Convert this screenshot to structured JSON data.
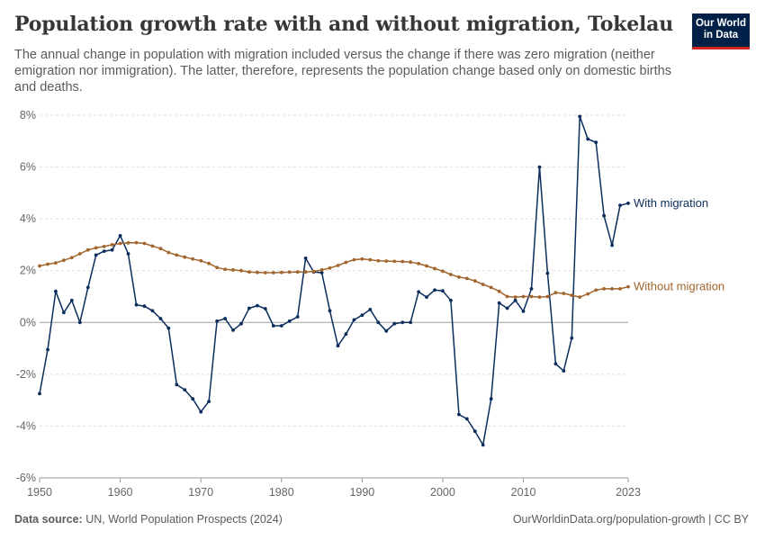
{
  "header": {
    "title": "Population growth rate with and without migration, Tokelau",
    "subtitle": "The annual change in population with migration included versus the change if there was zero migration (neither emigration nor immigration). The latter, therefore, represents the population change based only on domestic births and deaths."
  },
  "logo": {
    "line1": "Our World",
    "line2": "in Data",
    "bg": "#002147",
    "accent": "#ce261e"
  },
  "footer": {
    "source_label": "Data source:",
    "source_text": "UN, World Population Prospects (2024)",
    "credit": "OurWorldinData.org/population-growth | CC BY"
  },
  "chart_data": {
    "type": "line",
    "x": [
      1950,
      1951,
      1952,
      1953,
      1954,
      1955,
      1956,
      1957,
      1958,
      1959,
      1960,
      1961,
      1962,
      1963,
      1964,
      1965,
      1966,
      1967,
      1968,
      1969,
      1970,
      1971,
      1972,
      1973,
      1974,
      1975,
      1976,
      1977,
      1978,
      1979,
      1980,
      1981,
      1982,
      1983,
      1984,
      1985,
      1986,
      1987,
      1988,
      1989,
      1990,
      1991,
      1992,
      1993,
      1994,
      1995,
      1996,
      1997,
      1998,
      1999,
      2000,
      2001,
      2002,
      2003,
      2004,
      2005,
      2006,
      2007,
      2008,
      2009,
      2010,
      2011,
      2012,
      2013,
      2014,
      2015,
      2016,
      2017,
      2018,
      2019,
      2020,
      2021,
      2022,
      2023
    ],
    "series": [
      {
        "name": "With migration",
        "color": "#0b2d5c",
        "values": [
          -2.75,
          -1.05,
          1.2,
          0.38,
          0.85,
          0.0,
          1.35,
          2.6,
          2.75,
          2.8,
          3.35,
          2.65,
          0.68,
          0.63,
          0.45,
          0.15,
          -0.22,
          -2.4,
          -2.6,
          -2.95,
          -3.45,
          -3.05,
          0.05,
          0.15,
          -0.3,
          -0.05,
          0.55,
          0.65,
          0.53,
          -0.13,
          -0.13,
          0.05,
          0.22,
          2.48,
          1.95,
          1.92,
          0.45,
          -0.9,
          -0.45,
          0.1,
          0.28,
          0.5,
          0.0,
          -0.33,
          -0.05,
          0.0,
          0.0,
          1.18,
          0.98,
          1.25,
          1.22,
          0.85,
          -3.55,
          -3.72,
          -4.2,
          -4.73,
          -2.95,
          0.75,
          0.55,
          0.85,
          0.43,
          1.3,
          6.0,
          1.9,
          -1.6,
          -1.87,
          -0.6,
          7.95,
          7.08,
          6.95,
          4.12,
          2.98,
          4.52,
          4.6
        ]
      },
      {
        "name": "Without migration",
        "color": "#a2652d",
        "values": [
          2.18,
          2.25,
          2.3,
          2.4,
          2.5,
          2.65,
          2.8,
          2.88,
          2.93,
          3.0,
          3.05,
          3.07,
          3.08,
          3.05,
          2.95,
          2.85,
          2.7,
          2.6,
          2.52,
          2.45,
          2.38,
          2.28,
          2.12,
          2.05,
          2.03,
          2.0,
          1.95,
          1.93,
          1.92,
          1.92,
          1.93,
          1.94,
          1.95,
          1.95,
          1.97,
          2.03,
          2.1,
          2.2,
          2.32,
          2.42,
          2.45,
          2.42,
          2.38,
          2.37,
          2.36,
          2.35,
          2.33,
          2.27,
          2.18,
          2.08,
          1.98,
          1.85,
          1.75,
          1.7,
          1.6,
          1.47,
          1.35,
          1.2,
          1.0,
          0.98,
          1.0,
          1.0,
          0.98,
          1.0,
          1.15,
          1.12,
          1.05,
          0.98,
          1.1,
          1.25,
          1.3,
          1.3,
          1.3,
          1.38
        ]
      }
    ],
    "ylim": [
      -6,
      8
    ],
    "yticks": [
      -6,
      -4,
      -2,
      0,
      2,
      4,
      6,
      8
    ],
    "ytick_labels": [
      "-6%",
      "-4%",
      "-2%",
      "0%",
      "2%",
      "4%",
      "6%",
      "8%"
    ],
    "xlim": [
      1950,
      2023
    ],
    "xticks": [
      1950,
      1960,
      1970,
      1980,
      1990,
      2000,
      2010,
      2023
    ],
    "xtick_labels": [
      "1950",
      "1960",
      "1970",
      "1980",
      "1990",
      "2000",
      "2010",
      "2023"
    ],
    "grid": true,
    "legend": "inline-right",
    "gridColor": "#dddddd",
    "textColor": "#666666"
  }
}
